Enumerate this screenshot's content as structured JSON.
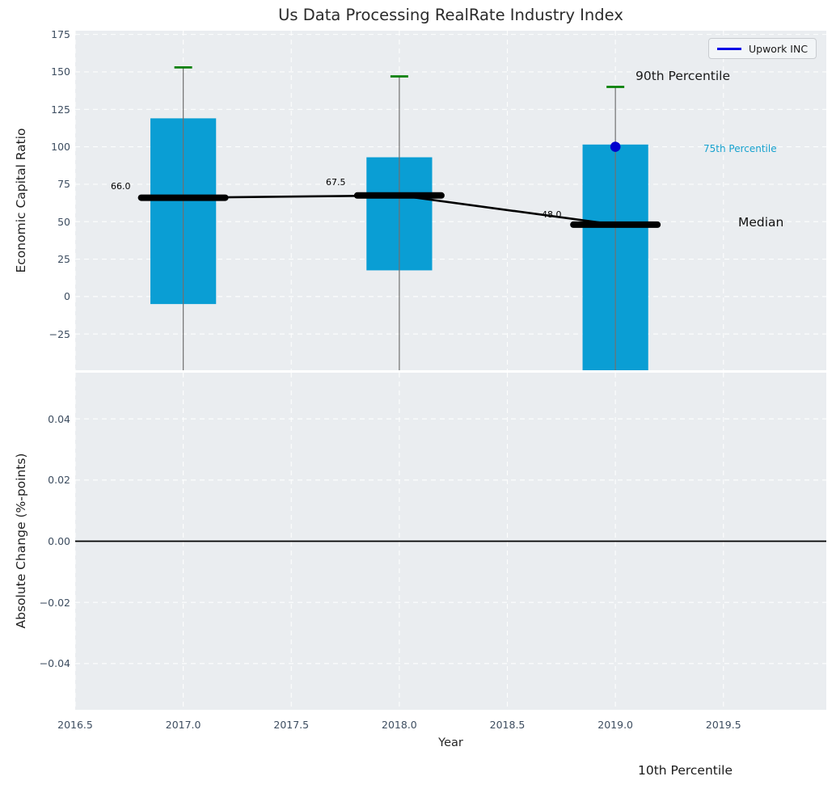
{
  "title": "Us Data Processing RealRate Industry Index",
  "legend": {
    "label": "Upwork INC",
    "position": "upper right"
  },
  "annotations": {
    "p90": "90th Percentile",
    "p75": "75th Percentile",
    "median": "Median",
    "p10": "10th Percentile"
  },
  "colors": {
    "bar": "#0a9ed4",
    "p90_cap": "#078007",
    "whisker": "#707070",
    "median_line": "#000000",
    "trend_line": "#000000",
    "company_point": "#0000cd",
    "legend_line": "#0000e6",
    "annotation_75": "#17a2cf",
    "axes_background": "#eaedf0",
    "grid": "#ffffff",
    "tick_text": "#3d4d60",
    "zero_line": "#000000"
  },
  "chart_data": [
    {
      "type": "bar",
      "subtype": "percentile-box-bars",
      "title": "Us Data Processing RealRate Industry Index",
      "ylabel": "Economic Capital Ratio",
      "years": [
        2017,
        2018,
        2019
      ],
      "median": [
        66.0,
        67.5,
        48.0
      ],
      "median_labels": [
        "66.0",
        "67.5",
        "48.0"
      ],
      "box_top": [
        119,
        93,
        101.5
      ],
      "box_bottom": [
        -5,
        17.5,
        null
      ],
      "p90_cap": [
        153,
        147,
        140
      ],
      "whiskers_clipped_below_axis": true,
      "company_point": {
        "name": "Upwork INC",
        "year": 2019,
        "value": 100
      },
      "ylim": [
        -49.2,
        177.5
      ],
      "yticks": {
        "values": [
          175,
          150,
          125,
          100,
          75,
          50,
          25,
          0,
          -25
        ],
        "labels": [
          "175",
          "150",
          "125",
          "100",
          "75",
          "50",
          "25",
          "0",
          "−25"
        ]
      },
      "xlim": [
        2016.5,
        2019.976
      ],
      "xticks": {
        "values": [
          2016.5,
          2017,
          2017.5,
          2018,
          2018.5,
          2019,
          2019.5
        ],
        "labels": [
          "2016.5",
          "2017.0",
          "2017.5",
          "2018.0",
          "2018.5",
          "2019.0",
          "2019.5"
        ]
      },
      "grid": "dashed-white",
      "legend_position": "upper right"
    },
    {
      "type": "line",
      "ylabel": "Absolute Change (%-points)",
      "xlabel": "Year",
      "series": [],
      "zero_line": 0,
      "ylim": [
        -0.0551,
        0.0551
      ],
      "yticks": {
        "values": [
          0.04,
          0.02,
          0,
          -0.02,
          -0.04
        ],
        "labels": [
          "0.04",
          "0.02",
          "0.00",
          "−0.02",
          "−0.04"
        ]
      },
      "xlim": [
        2016.5,
        2019.976
      ],
      "xticks": {
        "values": [
          2016.5,
          2017,
          2017.5,
          2018,
          2018.5,
          2019,
          2019.5
        ],
        "labels": [
          "2016.5",
          "2017.0",
          "2017.5",
          "2018.0",
          "2018.5",
          "2019.0",
          "2019.5"
        ]
      },
      "grid": "dashed-white"
    }
  ]
}
